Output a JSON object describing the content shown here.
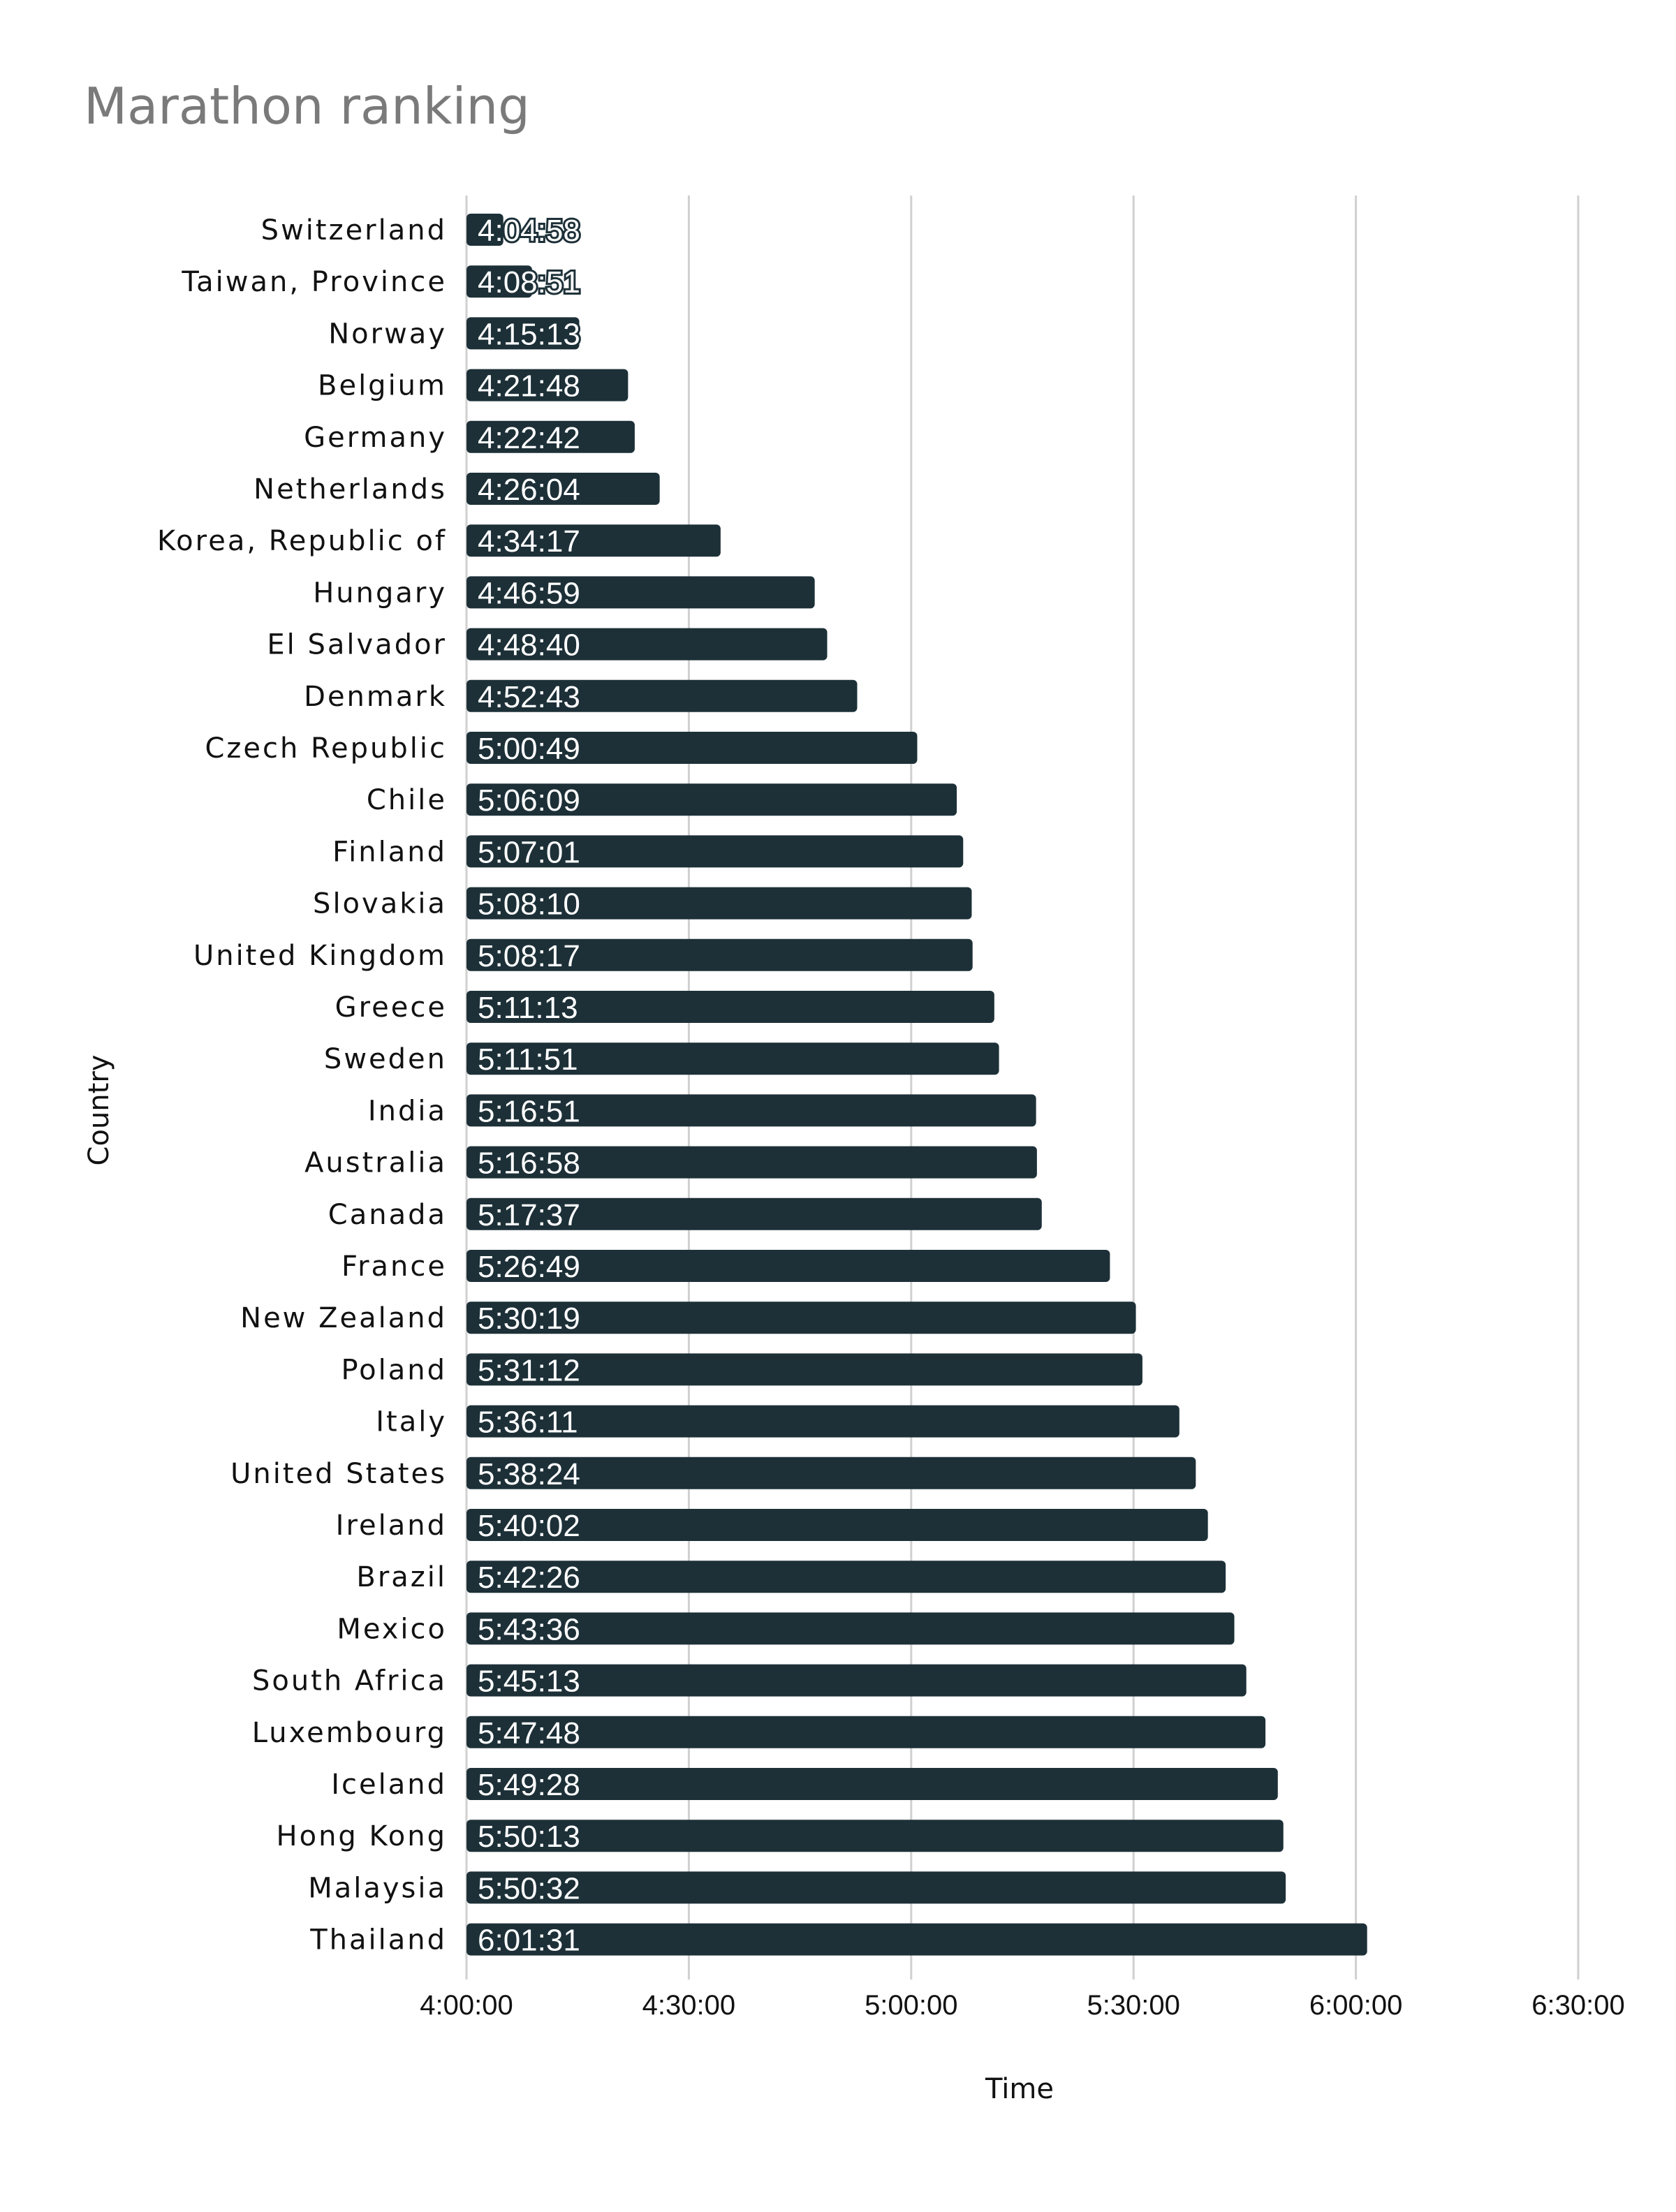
{
  "chart_data": {
    "type": "bar",
    "orientation": "horizontal",
    "title": "Marathon ranking",
    "xlabel": "Time",
    "ylabel": "Country",
    "xlim": [
      "4:00:00",
      "6:30:00"
    ],
    "xticks": [
      "4:00:00",
      "4:30:00",
      "5:00:00",
      "5:30:00",
      "6:00:00",
      "6:30:00"
    ],
    "grid": "vertical",
    "bar_color": "#1d3038",
    "categories": [
      "Switzerland",
      "Taiwan, Province",
      "Norway",
      "Belgium",
      "Germany",
      "Netherlands",
      "Korea, Republic of",
      "Hungary",
      "El Salvador",
      "Denmark",
      "Czech Republic",
      "Chile",
      "Finland",
      "Slovakia",
      "United Kingdom",
      "Greece",
      "Sweden",
      "India",
      "Australia",
      "Canada",
      "France",
      "New Zealand",
      "Poland",
      "Italy",
      "United States",
      "Ireland",
      "Brazil",
      "Mexico",
      "South Africa",
      "Luxembourg",
      "Iceland",
      "Hong Kong",
      "Malaysia",
      "Thailand"
    ],
    "values": [
      "4:04:58",
      "4:08:51",
      "4:15:13",
      "4:21:48",
      "4:22:42",
      "4:26:04",
      "4:34:17",
      "4:46:59",
      "4:48:40",
      "4:52:43",
      "5:00:49",
      "5:06:09",
      "5:07:01",
      "5:08:10",
      "5:08:17",
      "5:11:13",
      "5:11:51",
      "5:16:51",
      "5:16:58",
      "5:17:37",
      "5:26:49",
      "5:30:19",
      "5:31:12",
      "5:36:11",
      "5:38:24",
      "5:40:02",
      "5:42:26",
      "5:43:36",
      "5:45:13",
      "5:47:48",
      "5:49:28",
      "5:50:13",
      "5:50:32",
      "6:01:31"
    ]
  }
}
